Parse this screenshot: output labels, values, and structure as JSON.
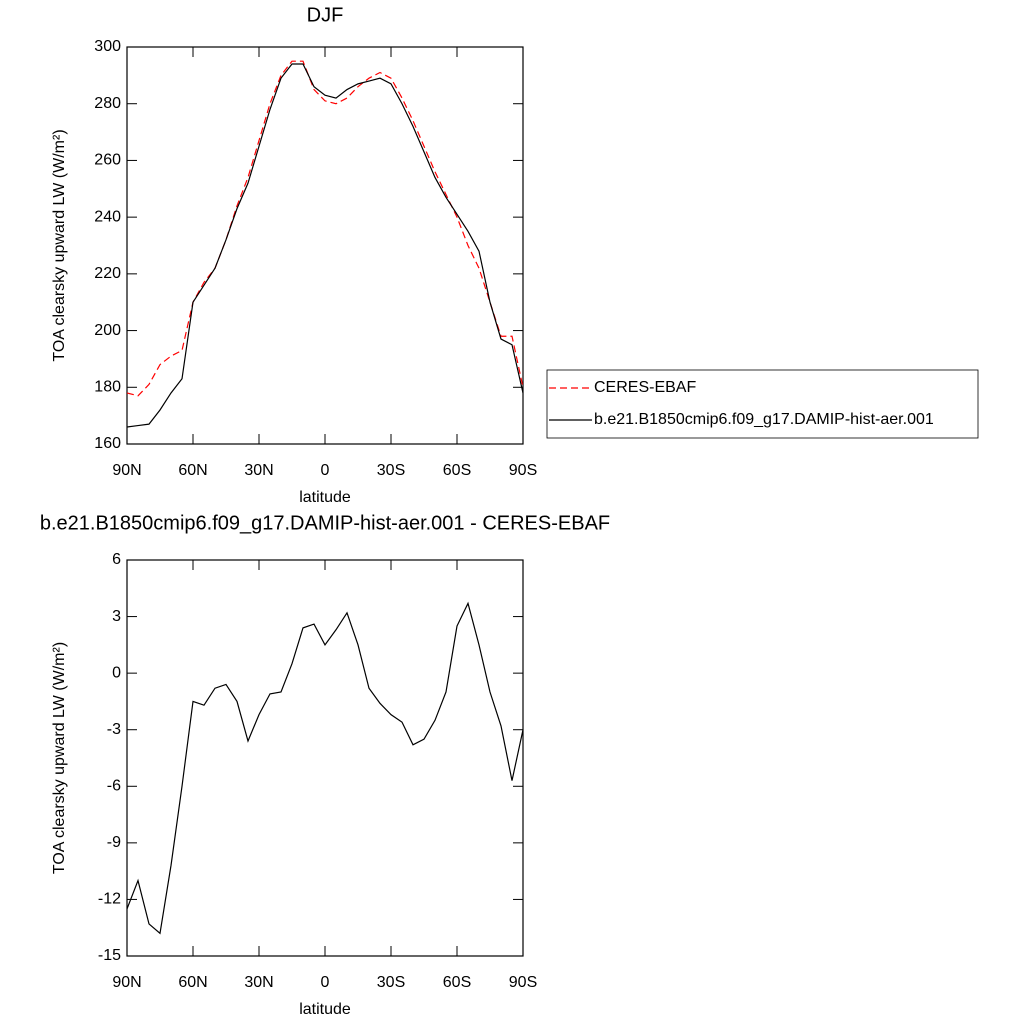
{
  "chart_data": [
    {
      "type": "line",
      "title": "DJF",
      "xlabel": "latitude",
      "ylabel": "TOA clearsky upward LW (W/m²)",
      "x": [
        90,
        85,
        80,
        75,
        70,
        65,
        60,
        55,
        50,
        45,
        40,
        35,
        30,
        25,
        20,
        15,
        10,
        5,
        0,
        -5,
        -10,
        -15,
        -20,
        -25,
        -30,
        -35,
        -40,
        -45,
        -50,
        -55,
        -60,
        -65,
        -70,
        -75,
        -80,
        -85,
        -90
      ],
      "xlim": [
        90,
        -90
      ],
      "xticks": [
        {
          "value": 90,
          "label": "90N"
        },
        {
          "value": 60,
          "label": "60N"
        },
        {
          "value": 30,
          "label": "30N"
        },
        0,
        {
          "value": -30,
          "label": "30S"
        },
        {
          "value": -60,
          "label": "60S"
        },
        {
          "value": -90,
          "label": "90S"
        }
      ],
      "ylim": [
        160,
        300
      ],
      "yticks": [
        160,
        180,
        200,
        220,
        240,
        260,
        280,
        300
      ],
      "legend": "right",
      "series": [
        {
          "name": "CERES-EBAF",
          "color": "#ff0000",
          "dash": true,
          "values": [
            178,
            177,
            181,
            188,
            191,
            193,
            210,
            217,
            222,
            232,
            244,
            254,
            267,
            280,
            290,
            295,
            295,
            285,
            281,
            280,
            282,
            286,
            289,
            291,
            289,
            282,
            274,
            265,
            256,
            248,
            240,
            230,
            222,
            210,
            198,
            198,
            180
          ]
        },
        {
          "name": "b.e21.B1850cmip6.f09_g17.DAMIP-hist-aer.001",
          "color": "#000000",
          "dash": false,
          "values": [
            166,
            166.5,
            167,
            172,
            178,
            183,
            210,
            216,
            222,
            232,
            243,
            252,
            265,
            278,
            289,
            294,
            294,
            286,
            283,
            282,
            285,
            287,
            288,
            289,
            287,
            280,
            272,
            263,
            254,
            247,
            241,
            235,
            228,
            210,
            197,
            195,
            178
          ]
        }
      ]
    },
    {
      "type": "line",
      "title": "b.e21.B1850cmip6.f09_g17.DAMIP-hist-aer.001 - CERES-EBAF",
      "xlabel": "latitude",
      "ylabel": "TOA clearsky upward LW (W/m²)",
      "x": [
        90,
        85,
        80,
        75,
        70,
        65,
        60,
        55,
        50,
        45,
        40,
        35,
        30,
        25,
        20,
        15,
        10,
        5,
        0,
        -5,
        -10,
        -15,
        -20,
        -25,
        -30,
        -35,
        -40,
        -45,
        -50,
        -55,
        -60,
        -65,
        -70,
        -75,
        -80,
        -85,
        -90
      ],
      "xlim": [
        90,
        -90
      ],
      "xticks": [
        {
          "value": 90,
          "label": "90N"
        },
        {
          "value": 60,
          "label": "60N"
        },
        {
          "value": 30,
          "label": "30N"
        },
        0,
        {
          "value": -30,
          "label": "30S"
        },
        {
          "value": -60,
          "label": "60S"
        },
        {
          "value": -90,
          "label": "90S"
        }
      ],
      "ylim": [
        -15,
        6
      ],
      "yticks": [
        -15,
        -12,
        -9,
        -6,
        -3,
        0,
        3,
        6
      ],
      "series": [
        {
          "color": "#000000",
          "dash": false,
          "values": [
            -12.5,
            -11,
            -13.3,
            -13.8,
            -10.2,
            -6,
            -1.5,
            -1.7,
            -0.8,
            -0.6,
            -1.5,
            -3.6,
            -2.2,
            -1.1,
            -1.0,
            0.5,
            2.4,
            2.6,
            1.5,
            2.3,
            3.2,
            1.5,
            -0.8,
            -1.6,
            -2.2,
            -2.6,
            -3.8,
            -3.5,
            -2.5,
            -1.0,
            2.5,
            3.7,
            1.5,
            -1.0,
            -2.8,
            -5.7,
            -3
          ]
        }
      ]
    }
  ]
}
